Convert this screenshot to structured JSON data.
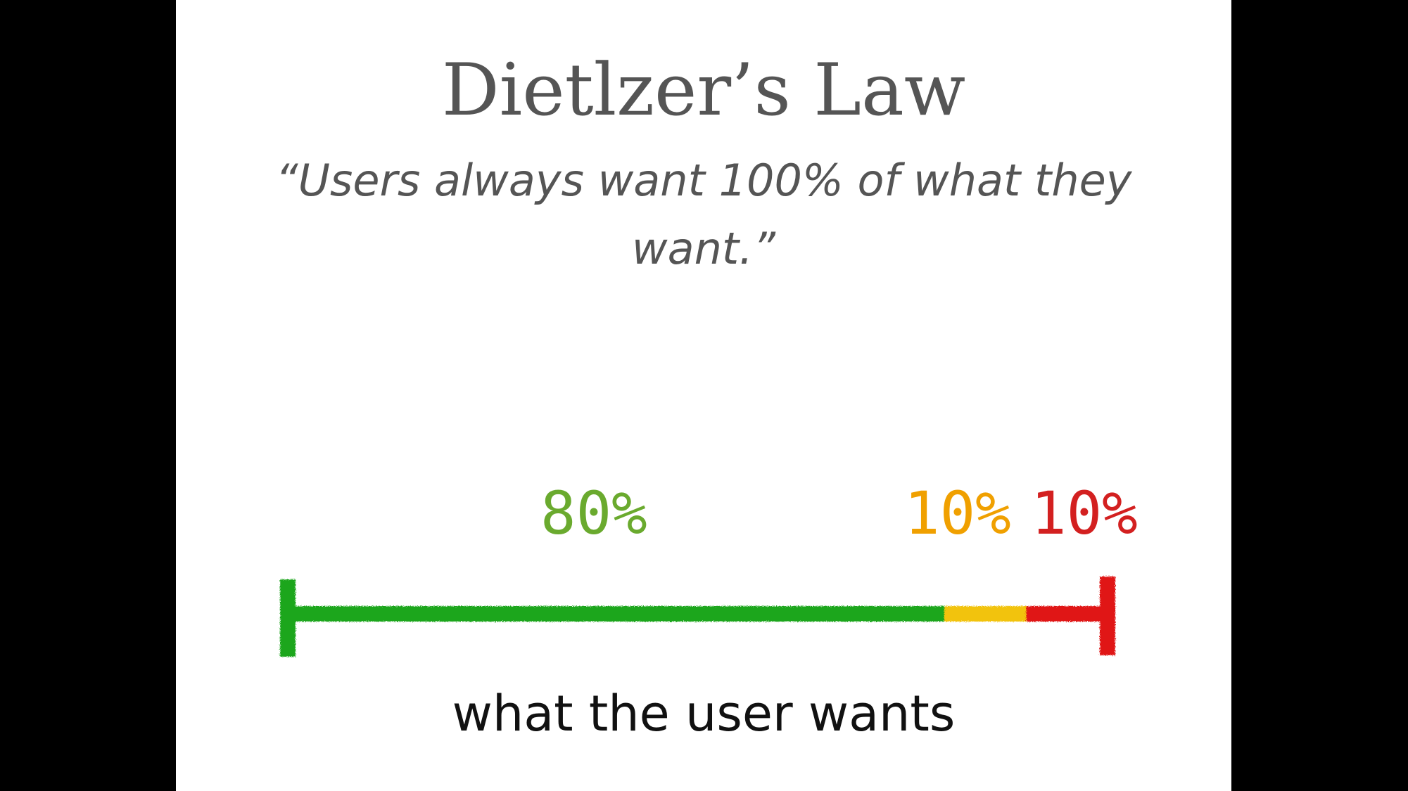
{
  "slide": {
    "title": "Dietlzer’s Law",
    "quote": "“Users always want 100% of what they want.”",
    "caption": "what the user wants"
  },
  "segments": [
    {
      "label": "80%",
      "value": 80,
      "color": "#6aaa2e",
      "bar_color": "#1aa61a"
    },
    {
      "label": "10%",
      "value": 10,
      "color": "#f0a000",
      "bar_color": "#f2c30c"
    },
    {
      "label": "10%",
      "value": 10,
      "color": "#d32020",
      "bar_color": "#e01818"
    }
  ]
}
